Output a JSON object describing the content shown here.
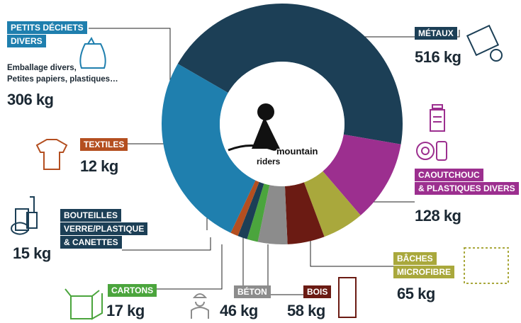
{
  "chart_data": {
    "type": "pie",
    "donut": true,
    "categories": [
      "MÉTAUX",
      "CAOUTCHOUC\n& PLASTIQUES DIVERS",
      "BÂCHES\nMICROFIBRE",
      "BOIS",
      "BÉTON",
      "CARTONS",
      "BOUTEILLES\nVERRE/PLASTIQUE\n& CANETTES",
      "TEXTILES",
      "PETITS DÉCHETS\nDIVERS"
    ],
    "values": [
      516,
      128,
      65,
      58,
      46,
      17,
      15,
      12,
      306
    ],
    "value_labels": [
      "516 kg",
      "128 kg",
      "65 kg",
      "58 kg",
      "46 kg",
      "17 kg",
      "15 kg",
      "12 kg",
      "306 kg"
    ],
    "colors": [
      "#1c3f56",
      "#9c2f8f",
      "#a9a83c",
      "#6b1b13",
      "#8c8c8c",
      "#4ba53d",
      "#1c3f56",
      "#b44f20",
      "#1f7fae"
    ],
    "annotation": "Emballage divers,\nPetites papiers, plastiques…",
    "logo": [
      "mountain",
      "riders"
    ]
  }
}
